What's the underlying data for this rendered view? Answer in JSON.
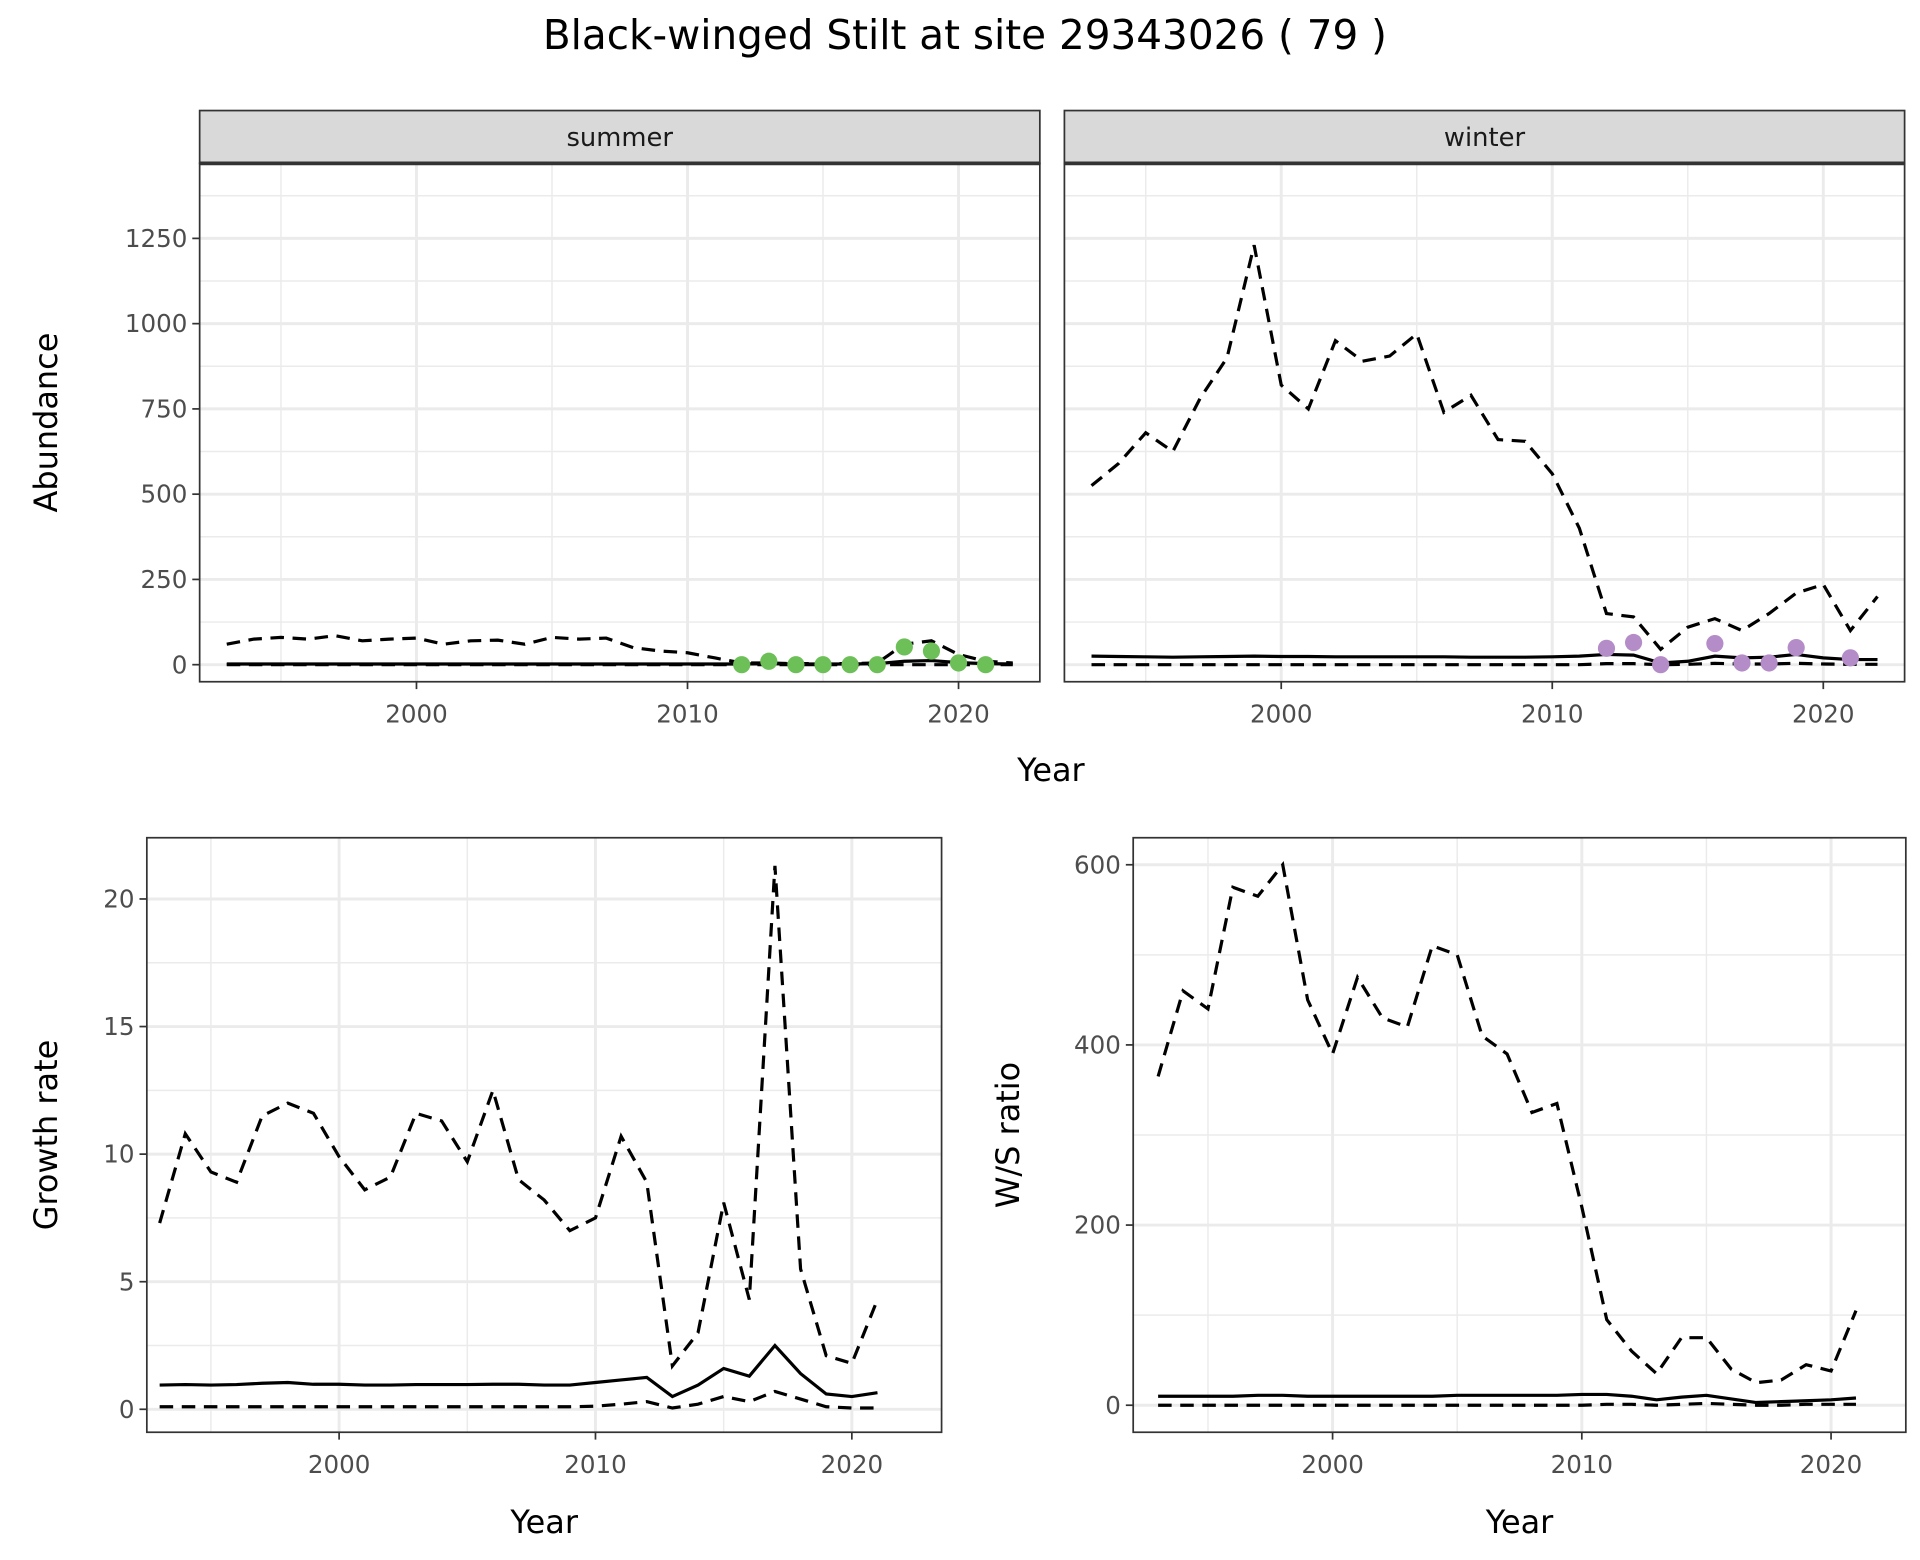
{
  "title": "Black-winged Stilt at site 29343026 ( 79 )",
  "colors": {
    "summer_points": "#6dbf58",
    "winter_points": "#b48cc8",
    "line": "#000000",
    "strip_bg": "#d9d9d9",
    "grid": "#ebebeb"
  },
  "chart_data": [
    {
      "type": "line",
      "facet": "summer",
      "xlabel": "Year",
      "ylabel": "Abundance",
      "xlim": [
        1992,
        2023
      ],
      "ylim": [
        -50,
        1470
      ],
      "xticks": [
        2000,
        2010,
        2020
      ],
      "yticks": [
        0,
        250,
        500,
        750,
        1000,
        1250
      ],
      "grid": true,
      "x": [
        1993,
        1994,
        1995,
        1996,
        1997,
        1998,
        1999,
        2000,
        2001,
        2002,
        2003,
        2004,
        2005,
        2006,
        2007,
        2008,
        2009,
        2010,
        2011,
        2012,
        2013,
        2014,
        2015,
        2016,
        2017,
        2018,
        2019,
        2020,
        2021,
        2022
      ],
      "series": [
        {
          "style": "dashed",
          "values": [
            60,
            75,
            80,
            75,
            85,
            70,
            75,
            78,
            60,
            70,
            72,
            60,
            80,
            75,
            78,
            50,
            40,
            35,
            20,
            5,
            5,
            3,
            3,
            3,
            5,
            60,
            70,
            30,
            10,
            5
          ]
        },
        {
          "style": "solid",
          "values": [
            2,
            2,
            2,
            2,
            2,
            2,
            2,
            2,
            2,
            2,
            2,
            2,
            2,
            2,
            2,
            2,
            2,
            2,
            2,
            2,
            3,
            2,
            2,
            2,
            3,
            10,
            12,
            6,
            3,
            2
          ]
        },
        {
          "style": "dashed",
          "values": [
            0,
            0,
            0,
            0,
            0,
            0,
            0,
            0,
            0,
            0,
            0,
            0,
            0,
            0,
            0,
            0,
            0,
            0,
            0,
            0,
            0,
            0,
            0,
            0,
            0,
            0,
            0,
            0,
            0,
            0
          ]
        }
      ],
      "points": {
        "x": [
          2012,
          2013,
          2014,
          2015,
          2016,
          2017,
          2018,
          2019,
          2020,
          2021
        ],
        "y": [
          0,
          10,
          0,
          0,
          0,
          0,
          52,
          40,
          5,
          0
        ]
      }
    },
    {
      "type": "line",
      "facet": "winter",
      "xlabel": "Year",
      "ylabel": "Abundance",
      "xlim": [
        1992,
        2023
      ],
      "ylim": [
        -50,
        1470
      ],
      "xticks": [
        2000,
        2010,
        2020
      ],
      "yticks": [
        0,
        250,
        500,
        750,
        1000,
        1250
      ],
      "grid": true,
      "x": [
        1993,
        1994,
        1995,
        1996,
        1997,
        1998,
        1999,
        2000,
        2001,
        2002,
        2003,
        2004,
        2005,
        2006,
        2007,
        2008,
        2009,
        2010,
        2011,
        2012,
        2013,
        2014,
        2015,
        2016,
        2017,
        2018,
        2019,
        2020,
        2021,
        2022
      ],
      "series": [
        {
          "style": "dashed",
          "values": [
            525,
            590,
            680,
            625,
            780,
            900,
            1230,
            820,
            750,
            950,
            890,
            905,
            970,
            740,
            790,
            660,
            655,
            560,
            400,
            150,
            140,
            45,
            110,
            135,
            100,
            150,
            210,
            235,
            100,
            200
          ]
        },
        {
          "style": "solid",
          "values": [
            25,
            24,
            23,
            22,
            23,
            24,
            25,
            24,
            24,
            23,
            23,
            23,
            23,
            23,
            22,
            22,
            22,
            23,
            25,
            30,
            28,
            5,
            10,
            25,
            20,
            22,
            30,
            20,
            15,
            15
          ]
        },
        {
          "style": "dashed",
          "values": [
            0,
            0,
            0,
            0,
            0,
            0,
            0,
            0,
            0,
            0,
            0,
            0,
            0,
            0,
            0,
            0,
            0,
            0,
            0,
            3,
            3,
            0,
            1,
            4,
            2,
            2,
            4,
            2,
            1,
            1
          ]
        }
      ],
      "points": {
        "x": [
          2012,
          2013,
          2014,
          2016,
          2017,
          2018,
          2019,
          2021
        ],
        "y": [
          48,
          65,
          0,
          62,
          5,
          5,
          50,
          20
        ]
      }
    },
    {
      "type": "line",
      "xlabel": "Year",
      "ylabel": "Growth rate",
      "xlim": [
        1992.5,
        2023.5
      ],
      "ylim": [
        -0.9,
        22.4
      ],
      "xticks": [
        2000,
        2010,
        2020
      ],
      "yticks": [
        0,
        5,
        10,
        15,
        20
      ],
      "grid": true,
      "x": [
        1993,
        1994,
        1995,
        1996,
        1997,
        1998,
        1999,
        2000,
        2001,
        2002,
        2003,
        2004,
        2005,
        2006,
        2007,
        2008,
        2009,
        2010,
        2011,
        2012,
        2013,
        2014,
        2015,
        2016,
        2017,
        2018,
        2019,
        2020,
        2021
      ],
      "series": [
        {
          "style": "dashed",
          "values": [
            7.3,
            10.8,
            9.3,
            8.9,
            11.5,
            12.0,
            11.6,
            9.9,
            8.6,
            9.1,
            11.6,
            11.3,
            9.7,
            12.5,
            9.0,
            8.2,
            7.0,
            7.5,
            10.7,
            8.9,
            1.7,
            3.0,
            8.1,
            4.3,
            21.3,
            5.5,
            2.1,
            1.8,
            4.3
          ]
        },
        {
          "style": "solid",
          "values": [
            0.95,
            0.97,
            0.95,
            0.97,
            1.02,
            1.05,
            0.98,
            0.98,
            0.95,
            0.95,
            0.97,
            0.97,
            0.97,
            0.98,
            0.98,
            0.95,
            0.95,
            1.05,
            1.15,
            1.25,
            0.5,
            0.95,
            1.6,
            1.3,
            2.5,
            1.4,
            0.6,
            0.5,
            0.65
          ]
        },
        {
          "style": "dashed",
          "values": [
            0.1,
            0.1,
            0.1,
            0.1,
            0.1,
            0.1,
            0.1,
            0.1,
            0.1,
            0.1,
            0.1,
            0.1,
            0.1,
            0.1,
            0.1,
            0.1,
            0.1,
            0.12,
            0.2,
            0.3,
            0.05,
            0.2,
            0.5,
            0.3,
            0.7,
            0.4,
            0.1,
            0.05,
            0.05
          ]
        }
      ]
    },
    {
      "type": "line",
      "xlabel": "Year",
      "ylabel": "W/S ratio",
      "xlim": [
        1992,
        2023
      ],
      "ylim": [
        -30,
        630
      ],
      "xticks": [
        2000,
        2010,
        2020
      ],
      "yticks": [
        0,
        200,
        400,
        600
      ],
      "grid": true,
      "x": [
        1993,
        1994,
        1995,
        1996,
        1997,
        1998,
        1999,
        2000,
        2001,
        2002,
        2003,
        2004,
        2005,
        2006,
        2007,
        2008,
        2009,
        2010,
        2011,
        2012,
        2013,
        2014,
        2015,
        2016,
        2017,
        2018,
        2019,
        2020,
        2021
      ],
      "series": [
        {
          "style": "dashed",
          "values": [
            365,
            460,
            440,
            575,
            565,
            600,
            450,
            390,
            475,
            430,
            420,
            510,
            500,
            410,
            390,
            325,
            335,
            220,
            95,
            60,
            35,
            75,
            75,
            40,
            25,
            28,
            45,
            38,
            105
          ]
        },
        {
          "style": "solid",
          "values": [
            10,
            10,
            10,
            10,
            11,
            11,
            10,
            10,
            10,
            10,
            10,
            10,
            11,
            11,
            11,
            11,
            11,
            12,
            12,
            10,
            6,
            9,
            11,
            7,
            3,
            4,
            5,
            6,
            8
          ]
        },
        {
          "style": "dashed",
          "values": [
            0,
            0,
            0,
            0,
            0,
            0,
            0,
            0,
            0,
            0,
            0,
            0,
            0,
            0,
            0,
            0,
            0,
            0,
            1,
            1,
            0,
            1,
            2,
            1,
            0,
            0,
            1,
            1,
            1
          ]
        }
      ]
    }
  ]
}
